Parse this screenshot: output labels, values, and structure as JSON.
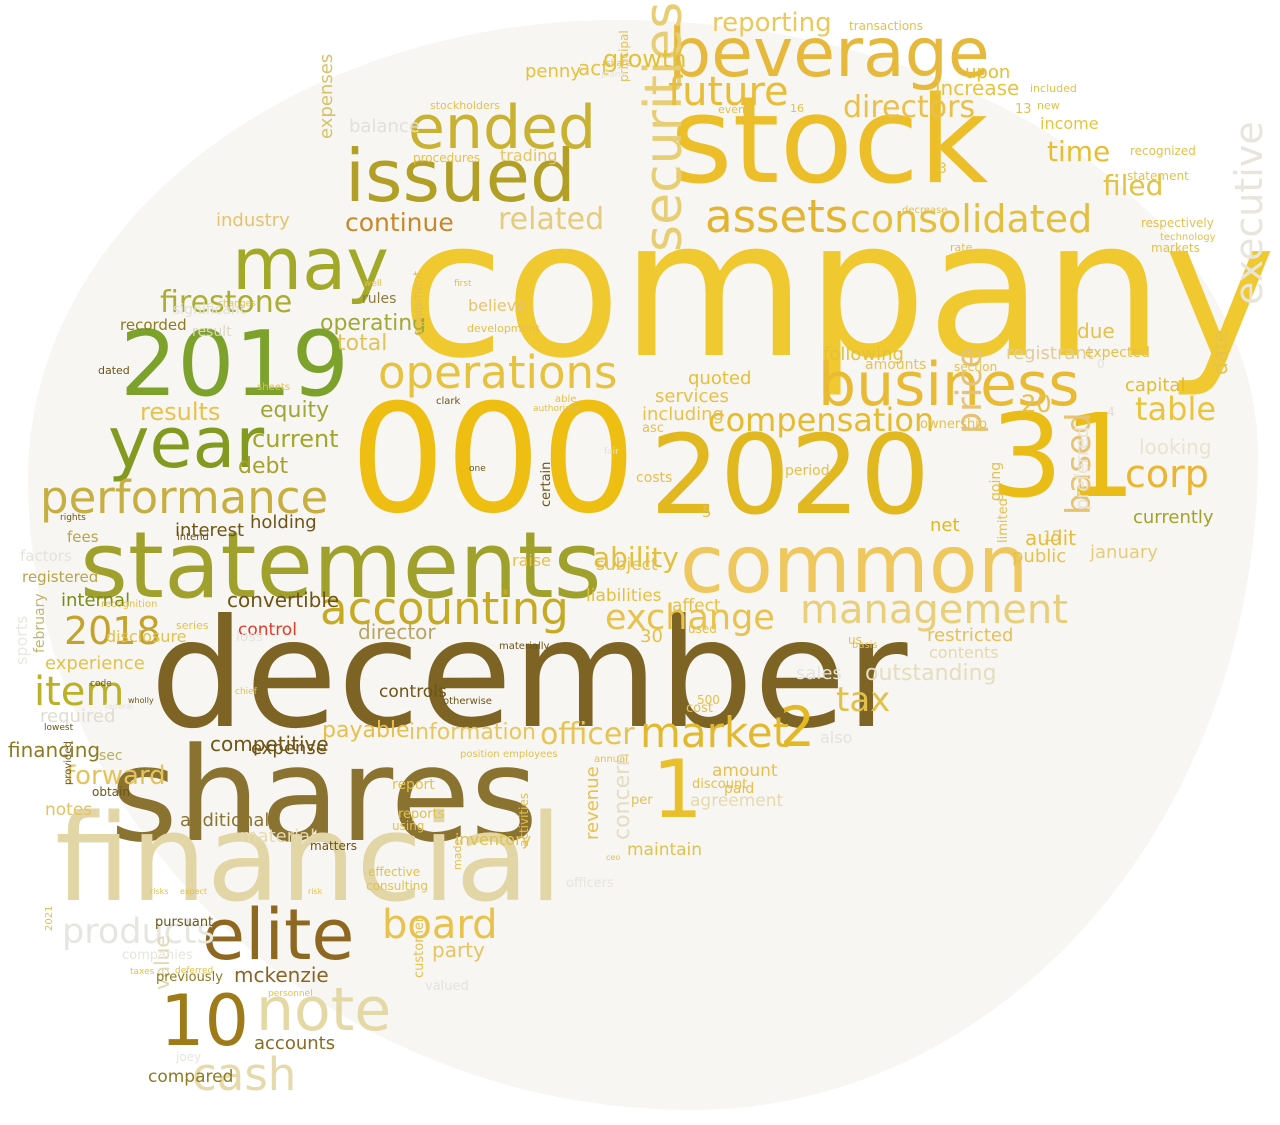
{
  "words": [
    {
      "text": "company",
      "color": "#f0c830"
    },
    {
      "text": "december",
      "color": "#7d6424"
    },
    {
      "text": "stock",
      "color": "#ecbf2a"
    },
    {
      "text": "shares",
      "color": "#8a7230"
    },
    {
      "text": "000",
      "color": "#eebf12"
    },
    {
      "text": "financial",
      "color": "#e2d6a6"
    },
    {
      "text": "2020",
      "color": "#e2b820"
    },
    {
      "text": "31",
      "color": "#e9bc18"
    },
    {
      "text": "statements",
      "color": "#a0a02c"
    },
    {
      "text": "common",
      "color": "#eec85e"
    },
    {
      "text": "beverage",
      "color": "#e6b83c"
    },
    {
      "text": "issued",
      "color": "#b2a026"
    },
    {
      "text": "2019",
      "color": "#7ca22c"
    },
    {
      "text": "may",
      "color": "#a2a828"
    },
    {
      "text": "year",
      "color": "#839a20"
    },
    {
      "text": "elite",
      "color": "#8e6820"
    },
    {
      "text": "note",
      "color": "#e4d8a4"
    },
    {
      "text": "business",
      "color": "#e9ba34"
    },
    {
      "text": "ended",
      "color": "#c9b232"
    },
    {
      "text": "performance",
      "color": "#c7ae40"
    },
    {
      "text": "operations",
      "color": "#e7c23e"
    },
    {
      "text": "accounting",
      "color": "#c6aa24"
    },
    {
      "text": "management",
      "color": "#e8cf7c"
    },
    {
      "text": "10",
      "color": "#9e7a18"
    },
    {
      "text": "1",
      "color": "#e9c02c"
    },
    {
      "text": "2",
      "color": "#e4b822"
    },
    {
      "text": "market",
      "color": "#e2b82e"
    },
    {
      "text": "assets",
      "color": "#e2b430"
    },
    {
      "text": "consolidated",
      "color": "#e4bf3e"
    },
    {
      "text": "securities",
      "color": "#e7ce74"
    },
    {
      "text": "future",
      "color": "#e9bd38"
    },
    {
      "text": "executive",
      "color": "#e7e5dc"
    },
    {
      "text": "corp",
      "color": "#ecb530"
    },
    {
      "text": "board",
      "color": "#e8c24c"
    },
    {
      "text": "cash",
      "color": "#e6d9ab"
    },
    {
      "text": "item",
      "color": "#bcb02a"
    },
    {
      "text": "tax",
      "color": "#e1c04c"
    },
    {
      "text": "compensation",
      "color": "#e6bb2e"
    },
    {
      "text": "exchange",
      "color": "#e8c24c"
    },
    {
      "text": "2018",
      "color": "#c4a22c"
    },
    {
      "text": "firestone",
      "color": "#abae32"
    },
    {
      "text": "directors",
      "color": "#e9c04c"
    },
    {
      "text": "table",
      "color": "#e9c43c"
    },
    {
      "text": "price",
      "color": "#e4c27a"
    },
    {
      "text": "based",
      "color": "#e7c270"
    },
    {
      "text": "filed",
      "color": "#e4c244"
    },
    {
      "text": "reporting",
      "color": "#ecc85c"
    },
    {
      "text": "related",
      "color": "#e4cc7c"
    },
    {
      "text": "continue",
      "color": "#c7882a"
    },
    {
      "text": "ability",
      "color": "#e3c03c"
    },
    {
      "text": "time",
      "color": "#e8bd34"
    },
    {
      "text": "products",
      "color": "#e6e6e0"
    },
    {
      "text": "officer",
      "color": "#e6c454"
    },
    {
      "text": "results",
      "color": "#e7c24c"
    },
    {
      "text": "equity",
      "color": "#a0a636"
    },
    {
      "text": "current",
      "color": "#a2a62c"
    },
    {
      "text": "debt",
      "color": "#a6a22e"
    },
    {
      "text": "operating",
      "color": "#a2a836"
    },
    {
      "text": "total",
      "color": "#e0c45a"
    },
    {
      "text": "forward",
      "color": "#e4c25c"
    },
    {
      "text": "value",
      "color": "#e0d8b4"
    },
    {
      "text": "mckenzie",
      "color": "#8a6424"
    },
    {
      "text": "accounts",
      "color": "#8a6a24"
    },
    {
      "text": "director",
      "color": "#b8a462"
    },
    {
      "text": "information",
      "color": "#e7c660"
    },
    {
      "text": "payable",
      "color": "#e6c04c"
    },
    {
      "text": "convertible",
      "color": "#6e5416"
    },
    {
      "text": "holding",
      "color": "#6e5418"
    },
    {
      "text": "control",
      "color": "#e03c28"
    },
    {
      "text": "interest",
      "color": "#6e5416"
    },
    {
      "text": "internal",
      "color": "#7c8a18"
    },
    {
      "text": "currently",
      "color": "#a2a22a"
    },
    {
      "text": "january",
      "color": "#e8cb78"
    },
    {
      "text": "looking",
      "color": "#e9e4d0"
    },
    {
      "text": "capital",
      "color": "#e4bc2c"
    },
    {
      "text": "audit",
      "color": "#e6bd38"
    },
    {
      "text": "net",
      "color": "#e2b91c"
    },
    {
      "text": "upon",
      "color": "#e6be2c"
    },
    {
      "text": "income",
      "color": "#e6c440"
    },
    {
      "text": "increase",
      "color": "#e6c440"
    },
    {
      "text": "growth",
      "color": "#e2c23c"
    },
    {
      "text": "act",
      "color": "#e6c144"
    },
    {
      "text": "penny",
      "color": "#e5c138"
    },
    {
      "text": "trading",
      "color": "#e3c56a"
    },
    {
      "text": "believe",
      "color": "#e5c56c"
    },
    {
      "text": "industry",
      "color": "#e5c36c"
    },
    {
      "text": "expenses",
      "color": "#d8c268"
    },
    {
      "text": "balance",
      "color": "#e2e0da"
    },
    {
      "text": "quoted",
      "color": "#e3c03c"
    },
    {
      "text": "services",
      "color": "#e7c04a"
    },
    {
      "text": "including",
      "color": "#e6c24c"
    },
    {
      "text": "affect",
      "color": "#e6c044"
    },
    {
      "text": "liabilities",
      "color": "#e6c03c"
    },
    {
      "text": "following",
      "color": "#e6c03c"
    },
    {
      "text": "amounts",
      "color": "#e4c260"
    },
    {
      "text": "restricted",
      "color": "#e4c05c"
    },
    {
      "text": "outstanding",
      "color": "#e4ddbe"
    },
    {
      "text": "contents",
      "color": "#e4d8ac"
    },
    {
      "text": "registrant",
      "color": "#e0cc9a"
    },
    {
      "text": "date",
      "color": "#e4c24c"
    },
    {
      "text": "preferred",
      "color": "#e7e3d8"
    },
    {
      "text": "public",
      "color": "#e4c24c"
    },
    {
      "text": "raise",
      "color": "#e6c04a"
    },
    {
      "text": "subject",
      "color": "#e4c04c"
    },
    {
      "text": "party",
      "color": "#e6c462"
    },
    {
      "text": "agreement",
      "color": "#e6d9ab"
    },
    {
      "text": "concern",
      "color": "#e4ddc4"
    },
    {
      "text": "revenue",
      "color": "#e6c050"
    },
    {
      "text": "amount",
      "color": "#e6c050"
    },
    {
      "text": "material",
      "color": "#e4d9b0"
    },
    {
      "text": "expense",
      "color": "#6e5416"
    },
    {
      "text": "additional",
      "color": "#8a7430"
    },
    {
      "text": "controls",
      "color": "#6e5416"
    },
    {
      "text": "notes",
      "color": "#e4c060"
    },
    {
      "text": "required",
      "color": "#e0dcd0"
    },
    {
      "text": "experience",
      "color": "#e0c24c"
    },
    {
      "text": "disclosure",
      "color": "#e0c24c"
    },
    {
      "text": "fees",
      "color": "#b8a44a"
    },
    {
      "text": "recorded",
      "color": "#8e7a20"
    },
    {
      "text": "significant",
      "color": "#e2e0d6"
    },
    {
      "text": "result",
      "color": "#e0d8c4"
    },
    {
      "text": "loss",
      "color": "#e4e2dc"
    },
    {
      "text": "rules",
      "color": "#8e7a40"
    },
    {
      "text": "registered",
      "color": "#b8a44a"
    },
    {
      "text": "factors",
      "color": "#e4e2da"
    },
    {
      "text": "sports",
      "color": "#e8e8e2"
    },
    {
      "text": "february",
      "color": "#c0b472"
    },
    {
      "text": "sec",
      "color": "#b6b058"
    },
    {
      "text": "obtain",
      "color": "#6e5416"
    },
    {
      "text": "matters",
      "color": "#6e5416"
    },
    {
      "text": "effective",
      "color": "#e0c24c"
    },
    {
      "text": "consulting",
      "color": "#e0c24c"
    },
    {
      "text": "inventory",
      "color": "#e0c24c"
    },
    {
      "text": "report",
      "color": "#e0c24c"
    },
    {
      "text": "reports",
      "color": "#e0c24c"
    },
    {
      "text": "using",
      "color": "#e0c24c"
    },
    {
      "text": "maintain",
      "color": "#e0c24c"
    },
    {
      "text": "officers",
      "color": "#e6e4dc"
    },
    {
      "text": "companies",
      "color": "#e6e4dc"
    },
    {
      "text": "previously",
      "color": "#8e7a20"
    },
    {
      "text": "pursuant",
      "color": "#6e5416"
    },
    {
      "text": "compared",
      "color": "#8e7a20"
    },
    {
      "text": "joey",
      "color": "#e6e4dc"
    },
    {
      "text": "valued",
      "color": "#e4e2dc"
    },
    {
      "text": "also",
      "color": "#e4e2dc"
    },
    {
      "text": "sales",
      "color": "#e6e4dc"
    },
    {
      "text": "500",
      "color": "#e4c04c"
    },
    {
      "text": "discount",
      "color": "#e4c04c"
    },
    {
      "text": "paid",
      "color": "#e4c04c"
    },
    {
      "text": "per",
      "color": "#e4c04c"
    },
    {
      "text": "used",
      "color": "#e4c04c"
    },
    {
      "text": "cost",
      "color": "#e4c04c"
    },
    {
      "text": "costs",
      "color": "#e4c04c"
    },
    {
      "text": "asc",
      "color": "#e4c04c"
    },
    {
      "text": "period",
      "color": "#e4c04c"
    },
    {
      "text": "limited",
      "color": "#e4c04c"
    },
    {
      "text": "going",
      "color": "#e4c04c"
    },
    {
      "text": "section",
      "color": "#e4c04c"
    },
    {
      "text": "ownership",
      "color": "#e4c04c"
    },
    {
      "text": "us",
      "color": "#e4c04c"
    },
    {
      "text": "basis",
      "color": "#e4c04c"
    },
    {
      "text": "expected",
      "color": "#e4c04c"
    },
    {
      "text": "due",
      "color": "#e4c04c"
    },
    {
      "text": "3",
      "color": "#e4c04c"
    },
    {
      "text": "13",
      "color": "#e4c04c"
    },
    {
      "text": "5",
      "color": "#e4c04c"
    },
    {
      "text": "30",
      "color": "#e4c04c"
    },
    {
      "text": "20",
      "color": "#e4c04c"
    },
    {
      "text": "15",
      "color": "#e4c04c"
    },
    {
      "text": "0",
      "color": "#e4e2dc"
    },
    {
      "text": "4",
      "color": "#e0dcd0"
    },
    {
      "text": "new",
      "color": "#e4c04c"
    },
    {
      "text": "16",
      "color": "#e4c04c"
    },
    {
      "text": "events",
      "color": "#e4c04c"
    },
    {
      "text": "recognized",
      "color": "#e4c04c"
    },
    {
      "text": "statement",
      "color": "#e4c04c"
    },
    {
      "text": "respectively",
      "color": "#e4c04c"
    },
    {
      "text": "markets",
      "color": "#e4c04c"
    },
    {
      "text": "technology",
      "color": "#e4c04c"
    },
    {
      "text": "rate",
      "color": "#e4c04c"
    },
    {
      "text": "decrease",
      "color": "#e4c04c"
    },
    {
      "text": "included",
      "color": "#e4c04c"
    },
    {
      "text": "transactions",
      "color": "#e4c04c"
    },
    {
      "text": "procedures",
      "color": "#e4c04c"
    },
    {
      "text": "principal",
      "color": "#e4c04c"
    },
    {
      "text": "stockholders",
      "color": "#e4c04c"
    },
    {
      "text": "plans",
      "color": "#e4e2dc"
    },
    {
      "text": "share",
      "color": "#e4c04c"
    },
    {
      "text": "plan",
      "color": "#e4c04c"
    },
    {
      "text": "first",
      "color": "#e4c04c"
    },
    {
      "text": "development",
      "color": "#e4c04c"
    },
    {
      "text": "equipment",
      "color": "#e4c04c"
    },
    {
      "text": "well",
      "color": "#e4c04c"
    },
    {
      "text": "changes",
      "color": "#e4c04c"
    },
    {
      "text": "sheets",
      "color": "#e4c04c"
    },
    {
      "text": "series",
      "color": "#e4c04c"
    },
    {
      "text": "chief",
      "color": "#e4c04c"
    },
    {
      "text": "clark",
      "color": "#6e5416"
    },
    {
      "text": "able",
      "color": "#e4c04c"
    },
    {
      "text": "authorized",
      "color": "#e4c04c"
    },
    {
      "text": "certain",
      "color": "#6e5416"
    },
    {
      "text": "one",
      "color": "#6e5416"
    },
    {
      "text": "materially",
      "color": "#6e5416"
    },
    {
      "text": "otherwise",
      "color": "#6e5416"
    },
    {
      "text": "position",
      "color": "#e4c04c"
    },
    {
      "text": "employees",
      "color": "#e4c04c"
    },
    {
      "text": "annual",
      "color": "#e4c04c"
    },
    {
      "text": "activities",
      "color": "#e4c04c"
    },
    {
      "text": "ceo",
      "color": "#e4c04c"
    },
    {
      "text": "made",
      "color": "#e4c04c"
    },
    {
      "text": "customer",
      "color": "#e4c04c"
    },
    {
      "text": "personnel",
      "color": "#e4c04c"
    },
    {
      "text": "deferred",
      "color": "#e4c04c"
    },
    {
      "text": "taxes",
      "color": "#e4c04c"
    },
    {
      "text": "2021",
      "color": "#e4c04c"
    },
    {
      "text": "risks",
      "color": "#e4c04c"
    },
    {
      "text": "expect",
      "color": "#e4c04c"
    },
    {
      "text": "risk",
      "color": "#e4c04c"
    },
    {
      "text": "federal",
      "color": "#e4e2dc"
    },
    {
      "text": "provided",
      "color": "#6e5416"
    },
    {
      "text": "intend",
      "color": "#6e5416"
    },
    {
      "text": "rights",
      "color": "#6e5416"
    },
    {
      "text": "recognition",
      "color": "#e4c04c"
    },
    {
      "text": "code",
      "color": "#6e5416"
    },
    {
      "text": "wholly",
      "color": "#6e5416"
    },
    {
      "text": "lowest",
      "color": "#6e5416"
    },
    {
      "text": "dated",
      "color": "#6e5416"
    },
    {
      "text": "fair",
      "color": "#e4e2dc"
    },
    {
      "text": "financing",
      "color": "#8e7a20"
    },
    {
      "text": "competitive",
      "color": "#6e5416"
    },
    {
      "text": "dividends",
      "color": "#6e5416"
    },
    {
      "text": "commission",
      "color": "#6e5416"
    },
    {
      "text": "october",
      "color": "#8e7a20"
    },
    {
      "text": "provide",
      "color": "#e4c04c"
    },
    {
      "text": "flows",
      "color": "#e4e2dc"
    },
    {
      "text": "necessary",
      "color": "#e4c04c"
    },
    {
      "text": "mackenzie",
      "color": "#e4e2dc"
    },
    {
      "text": "interest",
      "color": "#e4e2dc"
    }
  ]
}
